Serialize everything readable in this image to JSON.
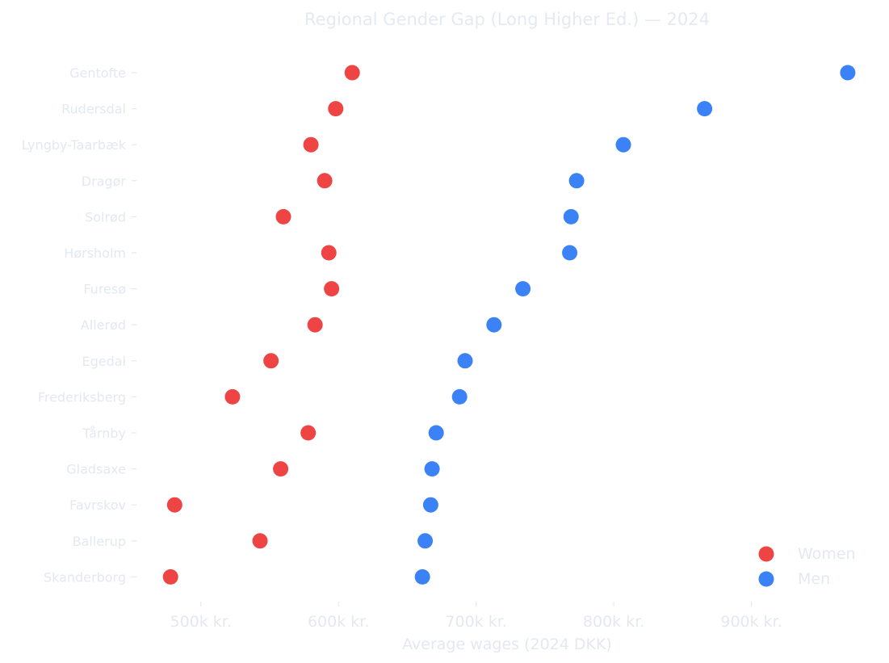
{
  "chart_data": {
    "type": "scatter",
    "title": "Regional Gender Gap (Long Higher Ed.) — 2024",
    "xlabel": "Average wages (2024 DKK)",
    "ylabel": "",
    "xlim": [
      455000,
      990000
    ],
    "xticks": [
      500000,
      600000,
      700000,
      800000,
      900000
    ],
    "xtick_labels": [
      "500k kr.",
      "600k kr.",
      "700k kr.",
      "800k kr.",
      "900k kr."
    ],
    "categories": [
      "Gentofte",
      "Rudersdal",
      "Lyngby-Taarbæk",
      "Dragør",
      "Solrød",
      "Hørsholm",
      "Furesø",
      "Allerød",
      "Egedal",
      "Frederiksberg",
      "Tårnby",
      "Gladsaxe",
      "Favrskov",
      "Ballerup",
      "Skanderborg"
    ],
    "series": [
      {
        "name": "Women",
        "color": "#ef4444",
        "values": [
          610000,
          598000,
          580000,
          590000,
          560000,
          593000,
          595000,
          583000,
          551000,
          523000,
          578000,
          558000,
          481000,
          543000,
          478000
        ]
      },
      {
        "name": "Men",
        "color": "#3b82f6",
        "values": [
          970000,
          866000,
          807000,
          773000,
          769000,
          768000,
          734000,
          713000,
          692000,
          688000,
          671000,
          668000,
          667000,
          663000,
          661000
        ]
      }
    ],
    "grid": false,
    "legend_position": "bottom-right"
  }
}
